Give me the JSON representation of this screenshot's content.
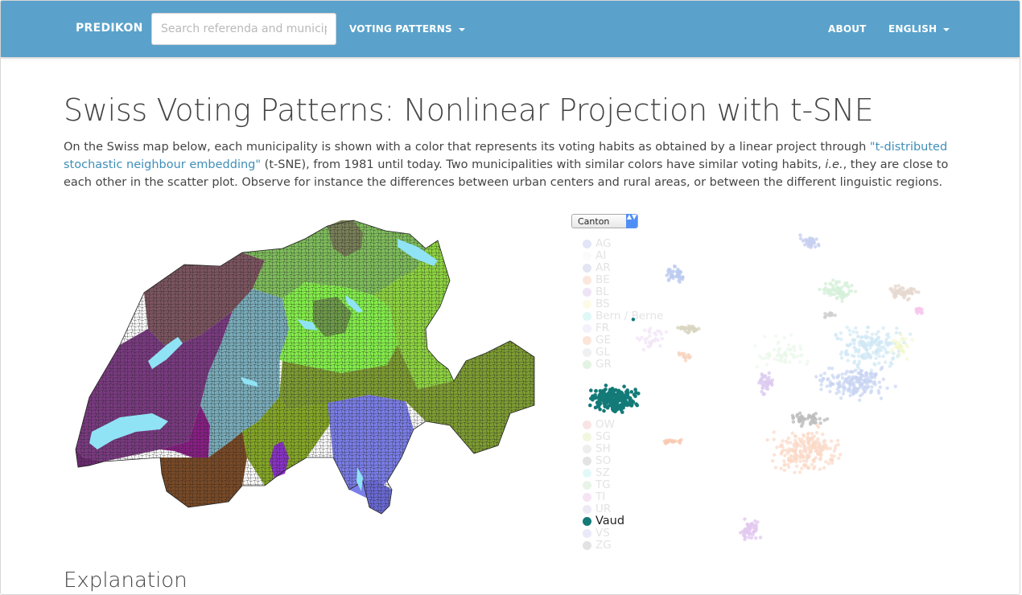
{
  "navbar": {
    "brand": "PREDIKON",
    "search_placeholder": "Search referenda and municipalities",
    "voting_patterns": "VOTING PATTERNS",
    "about": "ABOUT",
    "language": "ENGLISH"
  },
  "page": {
    "title": "Swiss Voting Patterns: Nonlinear Projection with t-SNE",
    "intro_1": "On the Swiss map below, each municipality is shown with a color that represents its voting habits as obtained by a linear project through ",
    "intro_link": "\"t-distributed stochastic neighbour embedding\"",
    "intro_2": " (t-SNE), from 1981 until today. Two municipalities with similar colors have similar voting habits, ",
    "intro_ie": "i.e.",
    "intro_3": ", they are close to each other in the scatter plot. Observe for instance the differences between urban centers and rural areas, or between the different linguistic regions.",
    "explanation_heading": "Explanation"
  },
  "controls": {
    "group_by": "Canton",
    "group_by_arrows": "▲▼"
  },
  "legend": [
    {
      "label": "AG",
      "color": "#e2e4f7"
    },
    {
      "label": "AI",
      "color": "#fbfbfb"
    },
    {
      "label": "AR",
      "color": "#e3e6f1"
    },
    {
      "label": "BE",
      "color": "#fbe7dc"
    },
    {
      "label": "BL",
      "color": "#efe3f6"
    },
    {
      "label": "BS",
      "color": "#fbfbe7"
    },
    {
      "label": "Bern / Berne",
      "color": "#dff8f8"
    },
    {
      "label": "FR",
      "color": "#f3f1fb"
    },
    {
      "label": "GE",
      "color": "#fbe4d9"
    },
    {
      "label": "GL",
      "color": "#eff0f2"
    },
    {
      "label": "GR",
      "color": "#e3f3e3"
    },
    {
      "label": "OW",
      "color": "#f8e4e4"
    },
    {
      "label": "SG",
      "color": "#f0f8df"
    },
    {
      "label": "SH",
      "color": "#eeeeee"
    },
    {
      "label": "SO",
      "color": "#e3e3e3"
    },
    {
      "label": "SZ",
      "color": "#e3f9f9"
    },
    {
      "label": "TG",
      "color": "#e9f4e9"
    },
    {
      "label": "TI",
      "color": "#f6e4f4"
    },
    {
      "label": "UR",
      "color": "#eeeaf5"
    },
    {
      "label": "Vaud",
      "color": "#137a78",
      "active": true
    },
    {
      "label": "VS",
      "color": "#e9e9f9"
    },
    {
      "label": "ZG",
      "color": "#e2e2e2"
    }
  ],
  "colors": {
    "navbar": "#5aa2cb",
    "link": "#3f8fb8",
    "vaud": "#137a78"
  }
}
